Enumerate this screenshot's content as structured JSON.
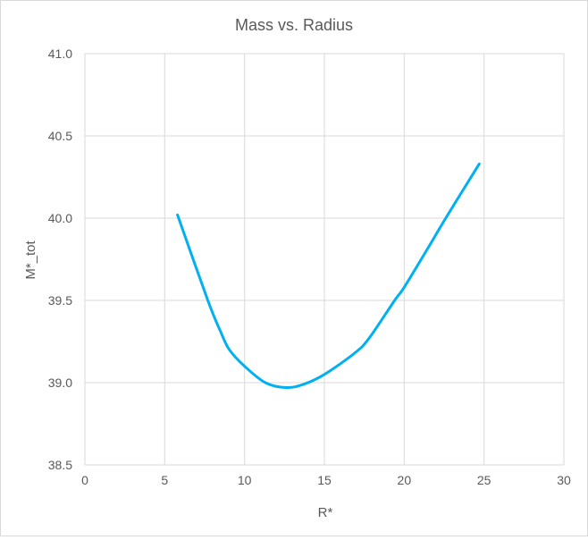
{
  "chart_data": {
    "type": "line",
    "title": "Mass vs. Radius",
    "xlabel": "R*",
    "ylabel": "M*_tot",
    "xlim": [
      0,
      30
    ],
    "ylim": [
      38.5,
      41.0
    ],
    "xticks": [
      0,
      5,
      10,
      15,
      20,
      25,
      30
    ],
    "yticks": [
      "38.5",
      "39.0",
      "39.5",
      "40.0",
      "40.5",
      "41.0"
    ],
    "grid": true,
    "legend": "none",
    "series_color": "#00B0F0",
    "series": [
      {
        "x": [
          5.8,
          7.7,
          8.5,
          9.05,
          10.0,
          11.3,
          12.6,
          13.7,
          15.0,
          16.9,
          17.8,
          19.4,
          20.0,
          21.5,
          22.6,
          24.7
        ],
        "y": [
          40.02,
          39.5,
          39.31,
          39.2,
          39.1,
          39.0,
          38.97,
          38.99,
          39.05,
          39.18,
          39.27,
          39.5,
          39.58,
          39.82,
          40.0,
          40.33
        ]
      }
    ]
  }
}
